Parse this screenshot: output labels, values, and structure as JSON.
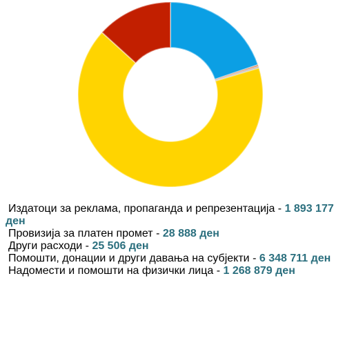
{
  "chart_data": {
    "type": "pie",
    "categories": [
      "Издатоци за реклама, пропаганда и репрезентација",
      "Провизија за платен промет",
      "Други расходи",
      "Помошти, донации и други давања на субјекти",
      "Надомести и помошти на физички лица"
    ],
    "values": [
      1893177,
      28888,
      25506,
      6348711,
      1268879
    ],
    "value_labels": [
      "1 893 177 ден",
      "28 888 ден",
      "25 506 ден",
      "6 348 711 ден",
      "1 268 879 ден"
    ],
    "colors": [
      "#0b9fe4",
      "#d8743c",
      "#9a9a9a",
      "#ffd400",
      "#c21f00"
    ],
    "legend_separator": " - "
  }
}
